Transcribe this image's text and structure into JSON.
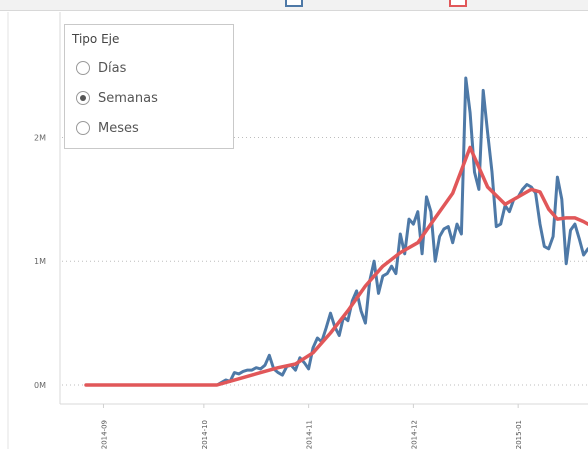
{
  "legend": {
    "series_colors": [
      "#4e79a7",
      "#e15759"
    ]
  },
  "axis_selector": {
    "title": "Tipo Eje",
    "options": [
      {
        "label": "Días",
        "selected": false
      },
      {
        "label": "Semanas",
        "selected": true
      },
      {
        "label": "Meses",
        "selected": false
      }
    ]
  },
  "chart_data": {
    "type": "line",
    "y_tick_labels": [
      "0M",
      "1M",
      "2M"
    ],
    "y_ticks": [
      0,
      1,
      2
    ],
    "ylim": [
      -0.05,
      2.65
    ],
    "xlim": [
      0,
      115
    ],
    "x_tick_labels": [
      "2014-09",
      "2014-10",
      "2014-11",
      "2014-12",
      "2015-01"
    ],
    "x_tick_positions": [
      4,
      27,
      51,
      75,
      99
    ],
    "grid": true,
    "series": [
      {
        "color": "#4e79a7",
        "x": [
          0,
          5,
          10,
          15,
          20,
          25,
          30,
          31,
          32,
          33,
          34,
          35,
          36,
          37,
          38,
          39,
          40,
          41,
          42,
          43,
          44,
          45,
          46,
          47,
          48,
          49,
          50,
          51,
          52,
          53,
          54,
          55,
          56,
          57,
          58,
          59,
          60,
          61,
          62,
          63,
          64,
          65,
          66,
          67,
          68,
          69,
          70,
          71,
          72,
          73,
          74,
          75,
          76,
          77,
          78,
          79,
          80,
          81,
          82,
          83,
          84,
          85,
          86,
          87,
          88,
          89,
          90,
          91,
          92,
          93,
          94,
          95,
          96,
          97,
          98,
          99,
          100,
          101,
          102,
          103,
          104,
          105,
          106,
          107,
          108,
          109,
          110,
          111,
          112,
          113,
          114,
          115
        ],
        "y": [
          0,
          0,
          0,
          0,
          0,
          0,
          0,
          0.02,
          0.04,
          0.03,
          0.1,
          0.09,
          0.11,
          0.12,
          0.12,
          0.14,
          0.13,
          0.16,
          0.24,
          0.13,
          0.1,
          0.08,
          0.15,
          0.16,
          0.12,
          0.22,
          0.18,
          0.13,
          0.3,
          0.38,
          0.35,
          0.46,
          0.58,
          0.47,
          0.4,
          0.55,
          0.52,
          0.68,
          0.76,
          0.6,
          0.5,
          0.84,
          1.0,
          0.74,
          0.88,
          0.9,
          0.96,
          0.9,
          1.22,
          1.06,
          1.34,
          1.3,
          1.4,
          1.06,
          1.52,
          1.4,
          1.0,
          1.2,
          1.26,
          1.28,
          1.15,
          1.3,
          1.22,
          2.48,
          2.2,
          1.72,
          1.58,
          2.38,
          2.04,
          1.72,
          1.28,
          1.3,
          1.45,
          1.4,
          1.5,
          1.52,
          1.58,
          1.62,
          1.6,
          1.55,
          1.3,
          1.12,
          1.1,
          1.2,
          1.68,
          1.5,
          0.98,
          1.25,
          1.3,
          1.18,
          1.05,
          1.1
        ]
      },
      {
        "color": "#e15759",
        "x": [
          0,
          10,
          20,
          28,
          30,
          35,
          40,
          44,
          48,
          52,
          56,
          60,
          64,
          68,
          72,
          76,
          80,
          84,
          88,
          92,
          96,
          99,
          102,
          104,
          106,
          108,
          110,
          112,
          114,
          115
        ],
        "y": [
          0,
          0,
          0,
          0,
          0,
          0.05,
          0.1,
          0.14,
          0.17,
          0.26,
          0.42,
          0.6,
          0.8,
          0.96,
          1.07,
          1.15,
          1.35,
          1.55,
          1.92,
          1.6,
          1.46,
          1.52,
          1.58,
          1.56,
          1.42,
          1.34,
          1.35,
          1.35,
          1.32,
          1.3
        ]
      }
    ]
  }
}
